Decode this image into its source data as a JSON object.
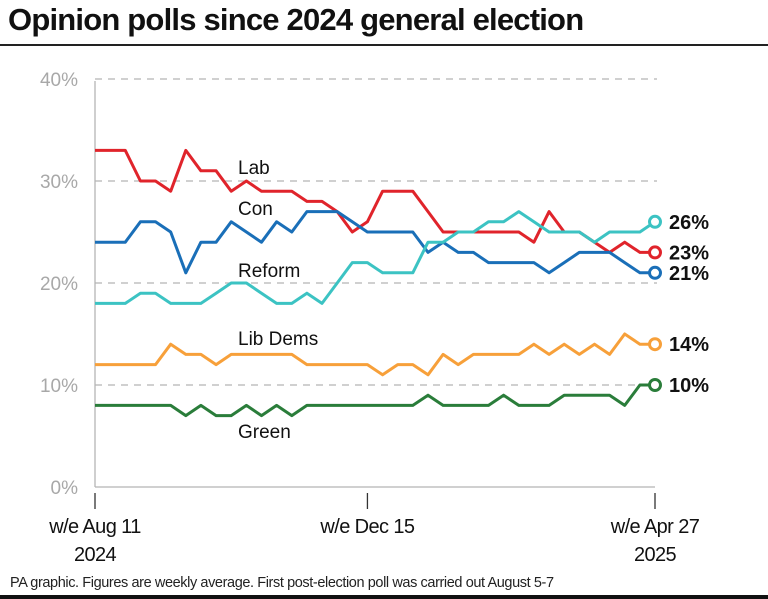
{
  "title": "Opinion polls since 2024 general election",
  "footer": "PA graphic. Figures are weekly average. First post-election poll was carried out August 5-7",
  "chart_data": {
    "type": "line",
    "ylim": [
      0,
      40
    ],
    "yticks": [
      0,
      10,
      20,
      30,
      40
    ],
    "ytick_labels": [
      "0%",
      "10%",
      "20%",
      "30%",
      "40%"
    ],
    "grid": "horizontal dashed",
    "x_start": "2024-08-11",
    "x_interval": "weekly",
    "xticks": [
      {
        "date": "2024-08-11",
        "line1": "w/e Aug 11",
        "line2": "2024"
      },
      {
        "date": "2024-12-15",
        "line1": "w/e Dec 15",
        "line2": ""
      },
      {
        "date": "2025-04-27",
        "line1": "w/e Apr 27",
        "line2": "2025"
      }
    ],
    "series": [
      {
        "name": "Lab",
        "color": "#e0242b",
        "end_label": "23%",
        "values": [
          33,
          33,
          33,
          30,
          30,
          29,
          33,
          31,
          31,
          29,
          30,
          29,
          29,
          29,
          28,
          28,
          27,
          25,
          26,
          29,
          29,
          29,
          27,
          25,
          25,
          25,
          25,
          25,
          25,
          24,
          27,
          25,
          25,
          24,
          23,
          24,
          23,
          23
        ]
      },
      {
        "name": "Con",
        "color": "#1a6fb8",
        "end_label": "21%",
        "values": [
          24,
          24,
          24,
          26,
          26,
          25,
          21,
          24,
          24,
          26,
          25,
          24,
          26,
          25,
          27,
          27,
          27,
          26,
          25,
          25,
          25,
          25,
          23,
          24,
          23,
          23,
          22,
          22,
          22,
          22,
          21,
          22,
          23,
          23,
          23,
          22,
          21,
          21
        ]
      },
      {
        "name": "Reform",
        "color": "#3cc3c3",
        "end_label": "26%",
        "values": [
          18,
          18,
          18,
          19,
          19,
          18,
          18,
          18,
          19,
          20,
          20,
          19,
          18,
          18,
          19,
          18,
          20,
          22,
          22,
          21,
          21,
          21,
          24,
          24,
          25,
          25,
          26,
          26,
          27,
          26,
          25,
          25,
          25,
          24,
          25,
          25,
          25,
          26
        ]
      },
      {
        "name": "Lib Dems",
        "color": "#f7a03a",
        "end_label": "14%",
        "values": [
          12,
          12,
          12,
          12,
          12,
          14,
          13,
          13,
          12,
          13,
          13,
          13,
          13,
          13,
          12,
          12,
          12,
          12,
          12,
          11,
          12,
          12,
          11,
          13,
          12,
          13,
          13,
          13,
          13,
          14,
          13,
          14,
          13,
          14,
          13,
          15,
          14,
          14
        ]
      },
      {
        "name": "Green",
        "color": "#2a7d3a",
        "end_label": "10%",
        "values": [
          8,
          8,
          8,
          8,
          8,
          8,
          7,
          8,
          7,
          7,
          8,
          7,
          8,
          7,
          8,
          8,
          8,
          8,
          8,
          8,
          8,
          8,
          9,
          8,
          8,
          8,
          8,
          9,
          8,
          8,
          8,
          9,
          9,
          9,
          9,
          8,
          10,
          10
        ]
      }
    ]
  }
}
